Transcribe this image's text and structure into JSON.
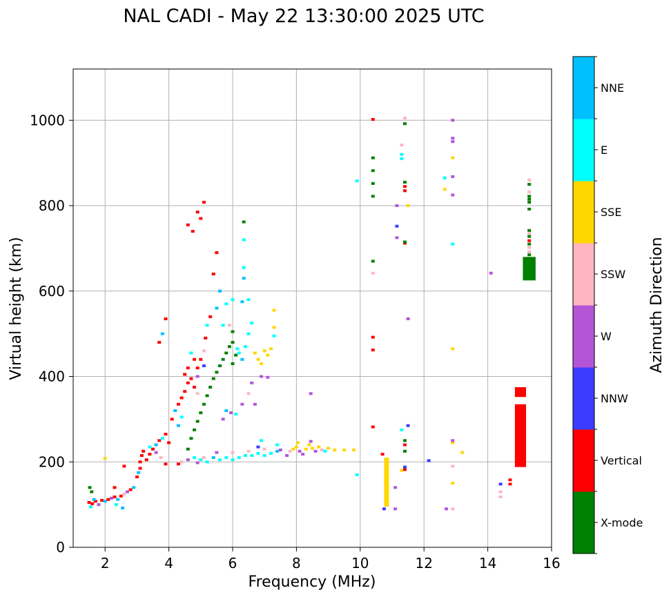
{
  "chart_data": {
    "type": "scatter",
    "title": "NAL CADI - May 22 13:30:00 2025 UTC",
    "xlabel": "Frequency (MHz)",
    "ylabel": "Virtual height (km)",
    "xlim": [
      1,
      16
    ],
    "ylim": [
      0,
      1120
    ],
    "xticks": [
      2,
      4,
      6,
      8,
      10,
      12,
      14,
      16
    ],
    "yticks": [
      0,
      200,
      400,
      600,
      800,
      1000
    ],
    "grid": true,
    "colorbar": {
      "title": "Azimuth Direction",
      "categories": [
        {
          "name": "X-mode",
          "color": "#008000"
        },
        {
          "name": "Vertical",
          "color": "#ff0000"
        },
        {
          "name": "NNW",
          "color": "#3c3cff"
        },
        {
          "name": "W",
          "color": "#b455d7"
        },
        {
          "name": "SSW",
          "color": "#ffb6c1"
        },
        {
          "name": "SSE",
          "color": "#ffd700"
        },
        {
          "name": "E",
          "color": "#00ffff"
        },
        {
          "name": "NNE",
          "color": "#00bfff"
        }
      ]
    },
    "points": [
      [
        1.5,
        105,
        "Vertical"
      ],
      [
        1.6,
        102,
        "Vertical"
      ],
      [
        1.7,
        108,
        "Vertical"
      ],
      [
        1.55,
        95,
        "E"
      ],
      [
        1.65,
        112,
        "NNE"
      ],
      [
        1.8,
        100,
        "W"
      ],
      [
        1.9,
        110,
        "Vertical"
      ],
      [
        2.0,
        108,
        "NNE"
      ],
      [
        2.1,
        112,
        "Vertical"
      ],
      [
        2.2,
        115,
        "W"
      ],
      [
        2.3,
        118,
        "Vertical"
      ],
      [
        2.4,
        112,
        "NNE"
      ],
      [
        2.5,
        120,
        "Vertical"
      ],
      [
        2.6,
        125,
        "SSW"
      ],
      [
        2.7,
        130,
        "W"
      ],
      [
        2.8,
        135,
        "Vertical"
      ],
      [
        2.9,
        140,
        "NNE"
      ],
      [
        3.0,
        165,
        "Vertical"
      ],
      [
        3.05,
        175,
        "NNE"
      ],
      [
        3.1,
        185,
        "Vertical"
      ],
      [
        3.1,
        200,
        "Vertical"
      ],
      [
        3.15,
        215,
        "Vertical"
      ],
      [
        3.2,
        225,
        "Vertical"
      ],
      [
        3.3,
        205,
        "Vertical"
      ],
      [
        3.4,
        218,
        "Vertical"
      ],
      [
        3.5,
        230,
        "Vertical"
      ],
      [
        3.6,
        240,
        "NNE"
      ],
      [
        3.7,
        250,
        "Vertical"
      ],
      [
        3.8,
        255,
        "E"
      ],
      [
        3.9,
        265,
        "Vertical"
      ],
      [
        4.0,
        245,
        "Vertical"
      ],
      [
        3.6,
        222,
        "W"
      ],
      [
        3.4,
        235,
        "E"
      ],
      [
        3.75,
        210,
        "SSW"
      ],
      [
        2.35,
        100,
        "E"
      ],
      [
        2.55,
        92,
        "NNE"
      ],
      [
        1.58,
        130,
        "X-mode"
      ],
      [
        1.52,
        140,
        "X-mode"
      ],
      [
        2.3,
        140,
        "Vertical"
      ],
      [
        2.6,
        190,
        "Vertical"
      ],
      [
        2.0,
        208,
        "SSE"
      ],
      [
        4.1,
        300,
        "Vertical"
      ],
      [
        4.2,
        320,
        "NNE"
      ],
      [
        4.3,
        335,
        "Vertical"
      ],
      [
        4.4,
        350,
        "Vertical"
      ],
      [
        4.5,
        365,
        "Vertical"
      ],
      [
        4.6,
        385,
        "Vertical"
      ],
      [
        4.5,
        405,
        "Vertical"
      ],
      [
        4.7,
        395,
        "Vertical"
      ],
      [
        4.8,
        375,
        "Vertical"
      ],
      [
        4.9,
        360,
        "SSW"
      ],
      [
        4.4,
        305,
        "E"
      ],
      [
        4.3,
        285,
        "NNE"
      ],
      [
        4.9,
        420,
        "Vertical"
      ],
      [
        5.0,
        440,
        "Vertical"
      ],
      [
        5.1,
        460,
        "SSW"
      ],
      [
        5.15,
        490,
        "Vertical"
      ],
      [
        5.2,
        520,
        "E"
      ],
      [
        5.3,
        540,
        "Vertical"
      ],
      [
        5.1,
        425,
        "NNW"
      ],
      [
        4.9,
        400,
        "W"
      ],
      [
        4.6,
        420,
        "Vertical"
      ],
      [
        4.7,
        455,
        "E"
      ],
      [
        4.8,
        440,
        "Vertical"
      ],
      [
        4.6,
        755,
        "Vertical"
      ],
      [
        4.75,
        740,
        "Vertical"
      ],
      [
        4.9,
        785,
        "Vertical"
      ],
      [
        5.0,
        770,
        "Vertical"
      ],
      [
        5.1,
        808,
        "Vertical"
      ],
      [
        5.4,
        640,
        "Vertical"
      ],
      [
        5.5,
        690,
        "Vertical"
      ],
      [
        3.9,
        535,
        "Vertical"
      ],
      [
        3.8,
        500,
        "NNE"
      ],
      [
        3.7,
        480,
        "Vertical"
      ],
      [
        5.5,
        560,
        "NNE"
      ],
      [
        5.7,
        520,
        "E"
      ],
      [
        5.9,
        520,
        "SSW"
      ],
      [
        4.6,
        230,
        "X-mode"
      ],
      [
        4.7,
        255,
        "X-mode"
      ],
      [
        4.8,
        275,
        "X-mode"
      ],
      [
        4.9,
        295,
        "X-mode"
      ],
      [
        5.0,
        315,
        "X-mode"
      ],
      [
        5.1,
        335,
        "X-mode"
      ],
      [
        5.2,
        355,
        "X-mode"
      ],
      [
        5.3,
        375,
        "X-mode"
      ],
      [
        5.4,
        395,
        "X-mode"
      ],
      [
        5.5,
        410,
        "X-mode"
      ],
      [
        5.6,
        425,
        "X-mode"
      ],
      [
        5.7,
        440,
        "X-mode"
      ],
      [
        5.8,
        455,
        "X-mode"
      ],
      [
        5.9,
        470,
        "X-mode"
      ],
      [
        6.0,
        480,
        "X-mode"
      ],
      [
        6.1,
        450,
        "X-mode"
      ],
      [
        6.0,
        430,
        "X-mode"
      ],
      [
        6.2,
        455,
        "E"
      ],
      [
        6.3,
        440,
        "NNE"
      ],
      [
        6.15,
        465,
        "E"
      ],
      [
        6.4,
        470,
        "E"
      ],
      [
        6.5,
        500,
        "E"
      ],
      [
        6.6,
        525,
        "E"
      ],
      [
        6.5,
        580,
        "E"
      ],
      [
        6.3,
        575,
        "NNE"
      ],
      [
        6.0,
        580,
        "E"
      ],
      [
        5.6,
        600,
        "NNE"
      ],
      [
        5.8,
        570,
        "E"
      ],
      [
        6.0,
        505,
        "X-mode"
      ],
      [
        6.35,
        762,
        "X-mode"
      ],
      [
        6.35,
        720,
        "E"
      ],
      [
        6.35,
        655,
        "E"
      ],
      [
        6.35,
        630,
        "NNE"
      ],
      [
        6.7,
        455,
        "SSE"
      ],
      [
        6.8,
        440,
        "SSE"
      ],
      [
        6.9,
        430,
        "SSE"
      ],
      [
        7.0,
        460,
        "SSE"
      ],
      [
        7.1,
        450,
        "SSE"
      ],
      [
        7.2,
        465,
        "SSE"
      ],
      [
        7.3,
        495,
        "E"
      ],
      [
        7.3,
        515,
        "SSE"
      ],
      [
        7.3,
        555,
        "SSE"
      ],
      [
        6.9,
        400,
        "W"
      ],
      [
        7.1,
        398,
        "W"
      ],
      [
        6.6,
        385,
        "W"
      ],
      [
        6.5,
        360,
        "SSW"
      ],
      [
        6.3,
        335,
        "W"
      ],
      [
        6.7,
        335,
        "W"
      ],
      [
        5.8,
        320,
        "NNE"
      ],
      [
        5.95,
        315,
        "W"
      ],
      [
        6.1,
        312,
        "E"
      ],
      [
        5.7,
        300,
        "W"
      ],
      [
        4.8,
        210,
        "E"
      ],
      [
        5.0,
        205,
        "E"
      ],
      [
        5.2,
        200,
        "E"
      ],
      [
        5.4,
        210,
        "NNE"
      ],
      [
        5.6,
        205,
        "E"
      ],
      [
        5.8,
        210,
        "E"
      ],
      [
        6.0,
        205,
        "E"
      ],
      [
        6.2,
        210,
        "E"
      ],
      [
        6.4,
        215,
        "E"
      ],
      [
        6.6,
        215,
        "E"
      ],
      [
        6.8,
        220,
        "E"
      ],
      [
        7.0,
        215,
        "E"
      ],
      [
        7.2,
        220,
        "E"
      ],
      [
        7.4,
        225,
        "NNE"
      ],
      [
        4.4,
        200,
        "SSW"
      ],
      [
        4.6,
        205,
        "W"
      ],
      [
        4.9,
        198,
        "W"
      ],
      [
        5.1,
        210,
        "SSW"
      ],
      [
        5.5,
        222,
        "W"
      ],
      [
        6.0,
        222,
        "SSW"
      ],
      [
        6.5,
        225,
        "SSW"
      ],
      [
        7.0,
        230,
        "SSW"
      ],
      [
        7.5,
        228,
        "W"
      ],
      [
        6.8,
        235,
        "NNW"
      ],
      [
        7.4,
        240,
        "E"
      ],
      [
        6.9,
        250,
        "E"
      ],
      [
        4.3,
        195,
        "Vertical"
      ],
      [
        3.9,
        195,
        "Vertical"
      ],
      [
        7.7,
        215,
        "W"
      ],
      [
        7.8,
        225,
        "SSW"
      ],
      [
        7.9,
        230,
        "SSE"
      ],
      [
        8.0,
        235,
        "SSE"
      ],
      [
        8.1,
        225,
        "W"
      ],
      [
        8.2,
        218,
        "W"
      ],
      [
        8.3,
        230,
        "SSE"
      ],
      [
        8.4,
        240,
        "SSE"
      ],
      [
        8.5,
        232,
        "SSE"
      ],
      [
        8.6,
        225,
        "W"
      ],
      [
        8.7,
        235,
        "SSE"
      ],
      [
        8.8,
        228,
        "SSW"
      ],
      [
        8.9,
        225,
        "E"
      ],
      [
        9.0,
        232,
        "SSE"
      ],
      [
        9.2,
        228,
        "SSE"
      ],
      [
        9.5,
        228,
        "SSE"
      ],
      [
        9.8,
        228,
        "SSE"
      ],
      [
        8.05,
        245,
        "SSE"
      ],
      [
        8.45,
        248,
        "W"
      ],
      [
        8.45,
        360,
        "W"
      ],
      [
        9.9,
        170,
        "E"
      ],
      [
        9.9,
        858,
        "E"
      ],
      [
        10.4,
        1002,
        "Vertical"
      ],
      [
        10.4,
        912,
        "X-mode"
      ],
      [
        10.4,
        882,
        "X-mode"
      ],
      [
        10.4,
        852,
        "X-mode"
      ],
      [
        10.4,
        822,
        "X-mode"
      ],
      [
        10.4,
        670,
        "X-mode"
      ],
      [
        10.4,
        642,
        "SSW"
      ],
      [
        10.4,
        492,
        "Vertical"
      ],
      [
        10.4,
        462,
        "Vertical"
      ],
      [
        10.4,
        282,
        "Vertical"
      ],
      [
        10.7,
        218,
        "Vertical"
      ],
      [
        10.75,
        90,
        "NNW"
      ],
      [
        11.1,
        140,
        "W"
      ],
      [
        11.1,
        90,
        "W"
      ],
      [
        11.3,
        180,
        "SSE"
      ],
      [
        11.4,
        182,
        "Vertical"
      ],
      [
        11.4,
        188,
        "NNW"
      ],
      [
        11.3,
        275,
        "E"
      ],
      [
        11.4,
        250,
        "X-mode"
      ],
      [
        11.4,
        240,
        "Vertical"
      ],
      [
        11.4,
        225,
        "X-mode"
      ],
      [
        11.5,
        285,
        "NNW"
      ],
      [
        11.15,
        752,
        "NNW"
      ],
      [
        11.15,
        725,
        "W"
      ],
      [
        11.15,
        800,
        "W"
      ],
      [
        11.4,
        712,
        "Vertical"
      ],
      [
        11.4,
        715,
        "X-mode"
      ],
      [
        11.4,
        845,
        "Vertical"
      ],
      [
        11.4,
        835,
        "Vertical"
      ],
      [
        11.4,
        855,
        "X-mode"
      ],
      [
        11.5,
        800,
        "SSE"
      ],
      [
        11.3,
        942,
        "SSW"
      ],
      [
        11.3,
        920,
        "E"
      ],
      [
        11.3,
        910,
        "E"
      ],
      [
        11.4,
        1005,
        "SSW"
      ],
      [
        11.4,
        992,
        "X-mode"
      ],
      [
        11.5,
        535,
        "W"
      ],
      [
        12.15,
        203,
        "NNW"
      ],
      [
        12.7,
        90,
        "W"
      ],
      [
        12.9,
        90,
        "SSW"
      ],
      [
        12.9,
        150,
        "SSE"
      ],
      [
        12.9,
        190,
        "SSW"
      ],
      [
        12.9,
        245,
        "SSE"
      ],
      [
        12.9,
        250,
        "W"
      ],
      [
        13.2,
        222,
        "SSE"
      ],
      [
        12.9,
        465,
        "SSE"
      ],
      [
        12.9,
        710,
        "E"
      ],
      [
        12.9,
        825,
        "W"
      ],
      [
        12.65,
        838,
        "SSE"
      ],
      [
        12.65,
        865,
        "E"
      ],
      [
        12.9,
        868,
        "W"
      ],
      [
        12.9,
        912,
        "SSE"
      ],
      [
        12.9,
        950,
        "W"
      ],
      [
        12.9,
        958,
        "W"
      ],
      [
        12.9,
        1000,
        "W"
      ],
      [
        14.1,
        642,
        "W"
      ],
      [
        14.4,
        148,
        "NNW"
      ],
      [
        14.4,
        130,
        "SSW"
      ],
      [
        14.4,
        118,
        "SSW"
      ],
      [
        14.7,
        158,
        "Vertical"
      ],
      [
        14.7,
        148,
        "Vertical"
      ],
      [
        15.3,
        860,
        "SSW"
      ],
      [
        15.3,
        850,
        "X-mode"
      ],
      [
        15.3,
        832,
        "SSW"
      ],
      [
        15.3,
        822,
        "X-mode"
      ],
      [
        15.3,
        815,
        "X-mode"
      ],
      [
        15.3,
        808,
        "X-mode"
      ],
      [
        15.3,
        792,
        "X-mode"
      ],
      [
        15.3,
        742,
        "X-mode"
      ],
      [
        15.3,
        735,
        "SSW"
      ],
      [
        15.3,
        728,
        "X-mode"
      ],
      [
        15.3,
        718,
        "Vertical"
      ],
      [
        15.3,
        710,
        "X-mode"
      ],
      [
        15.3,
        702,
        "SSW"
      ],
      [
        15.3,
        692,
        "SSW"
      ],
      [
        15.3,
        685,
        "X-mode"
      ]
    ],
    "bars": [
      {
        "x": [
          15.1,
          15.5
        ],
        "y": [
          625,
          680
        ],
        "azimuth": "X-mode"
      },
      {
        "x": [
          14.85,
          15.2
        ],
        "y": [
          188,
          335
        ],
        "azimuth": "Vertical"
      },
      {
        "x": [
          14.85,
          15.2
        ],
        "y": [
          352,
          375
        ],
        "azimuth": "Vertical"
      },
      {
        "x": [
          10.75,
          10.9
        ],
        "y": [
          95,
          210
        ],
        "azimuth": "SSE"
      }
    ]
  }
}
